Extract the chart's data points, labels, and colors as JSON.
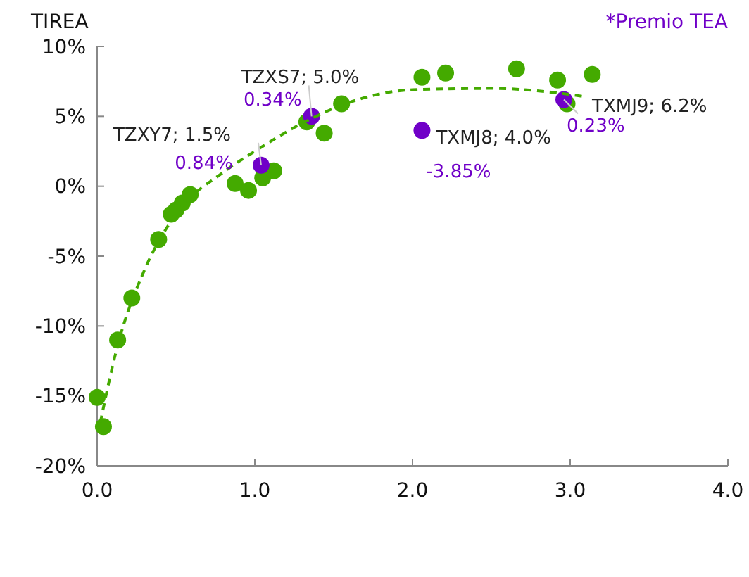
{
  "chart_data": {
    "type": "scatter",
    "ylabel": "TIREA",
    "xlim": [
      0,
      4
    ],
    "xticks": [
      {
        "value": 0,
        "label": "0.0"
      },
      {
        "value": 1,
        "label": "1.0"
      },
      {
        "value": 2,
        "label": "2.0"
      },
      {
        "value": 3,
        "label": "3.0"
      },
      {
        "value": 4,
        "label": "4.0"
      }
    ],
    "ylim": [
      -20,
      10
    ],
    "yticks": [
      {
        "value": -20,
        "label": "-20%"
      },
      {
        "value": -15,
        "label": "-15%"
      },
      {
        "value": -10,
        "label": "-10%"
      },
      {
        "value": -5,
        "label": "-5%"
      },
      {
        "value": 0,
        "label": "0%"
      },
      {
        "value": 5,
        "label": "5%"
      },
      {
        "value": 10,
        "label": "10%"
      }
    ],
    "grid": false,
    "marker": "circle",
    "series": [
      {
        "color": "#44aa00",
        "x": [
          0.0,
          0.04,
          0.13,
          0.22,
          0.39,
          0.47,
          0.5,
          0.54,
          0.59,
          0.875,
          0.96,
          1.05,
          1.12,
          1.33,
          1.44,
          1.55,
          2.06,
          2.21,
          2.66,
          2.92,
          3.14,
          2.98
        ],
        "values": [
          -15.1,
          -17.2,
          -11.0,
          -8.0,
          -3.8,
          -2.0,
          -1.7,
          -1.2,
          -0.6,
          0.2,
          -0.3,
          0.6,
          1.1,
          4.6,
          3.8,
          5.9,
          7.8,
          8.1,
          8.4,
          7.6,
          8.0,
          5.9
        ]
      },
      {
        "color": "#7000c8",
        "x": [
          1.04,
          1.36,
          2.06,
          2.96
        ],
        "values": [
          1.5,
          5.0,
          4.0,
          6.2
        ],
        "value_labels": [
          "TZXY7; 1.5%",
          "TZXS7; 5.0%",
          "TXMJ8; 4.0%",
          "TXMJ9; 6.2%"
        ]
      },
      {
        "type": "line",
        "line_style": "dashed",
        "marker": "none",
        "color": "#44aa00",
        "x": [
          0.02,
          0.13,
          0.3,
          0.5,
          0.8,
          1.0,
          1.3,
          1.6,
          2.0,
          2.5,
          2.9,
          3.1
        ],
        "values": [
          -16.9,
          -11.4,
          -6.0,
          -2.0,
          1.0,
          2.5,
          4.5,
          6.0,
          6.9,
          7.0,
          6.7,
          6.4
        ]
      }
    ],
    "annotations": [
      "*Premio TEA",
      {
        "text": "0.84%",
        "x": 1.04,
        "y": 1.5
      },
      {
        "text": "0.34%",
        "x": 1.36,
        "y": 5.0
      },
      {
        "text": "-3.85%",
        "x": 2.06,
        "y": 4.0
      },
      {
        "text": "0.23%",
        "x": 2.96,
        "y": 6.2
      }
    ]
  }
}
